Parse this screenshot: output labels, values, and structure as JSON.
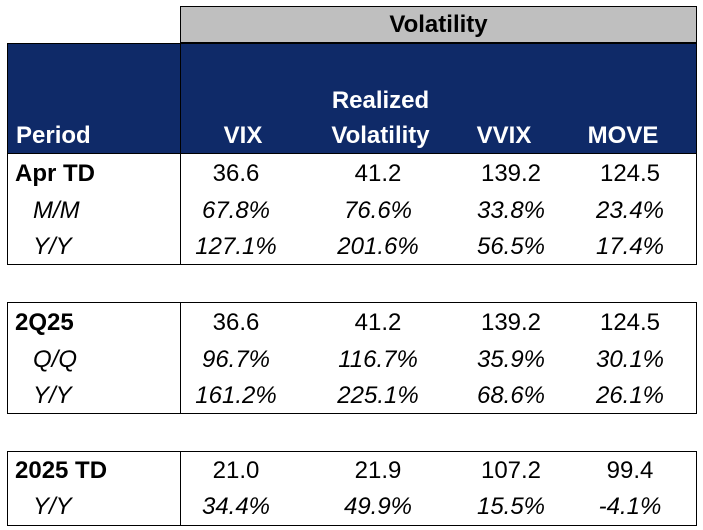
{
  "header": {
    "group_title": "Volatility",
    "period_label": "Period",
    "columns": [
      {
        "line1": "",
        "line2": "VIX"
      },
      {
        "line1": "Realized",
        "line2": "Volatility"
      },
      {
        "line1": "",
        "line2": "VVIX"
      },
      {
        "line1": "",
        "line2": "MOVE"
      }
    ]
  },
  "blocks": [
    {
      "rows": [
        {
          "label": "Apr TD",
          "values": [
            "36.6",
            "41.2",
            "139.2",
            "124.5"
          ]
        },
        {
          "label": "M/M",
          "values": [
            "67.8%",
            "76.6%",
            "33.8%",
            "23.4%"
          ]
        },
        {
          "label": "Y/Y",
          "values": [
            "127.1%",
            "201.6%",
            "56.5%",
            "17.4%"
          ]
        }
      ]
    },
    {
      "rows": [
        {
          "label": "2Q25",
          "values": [
            "36.6",
            "41.2",
            "139.2",
            "124.5"
          ]
        },
        {
          "label": "Q/Q",
          "values": [
            "96.7%",
            "116.7%",
            "35.9%",
            "30.1%"
          ]
        },
        {
          "label": "Y/Y",
          "values": [
            "161.2%",
            "225.1%",
            "68.6%",
            "26.1%"
          ]
        }
      ]
    },
    {
      "rows": [
        {
          "label": "2025 TD",
          "values": [
            "21.0",
            "21.9",
            "107.2",
            "99.4"
          ]
        },
        {
          "label": "Y/Y",
          "values": [
            "34.4%",
            "49.9%",
            "15.5%",
            "-4.1%"
          ]
        }
      ]
    }
  ]
}
